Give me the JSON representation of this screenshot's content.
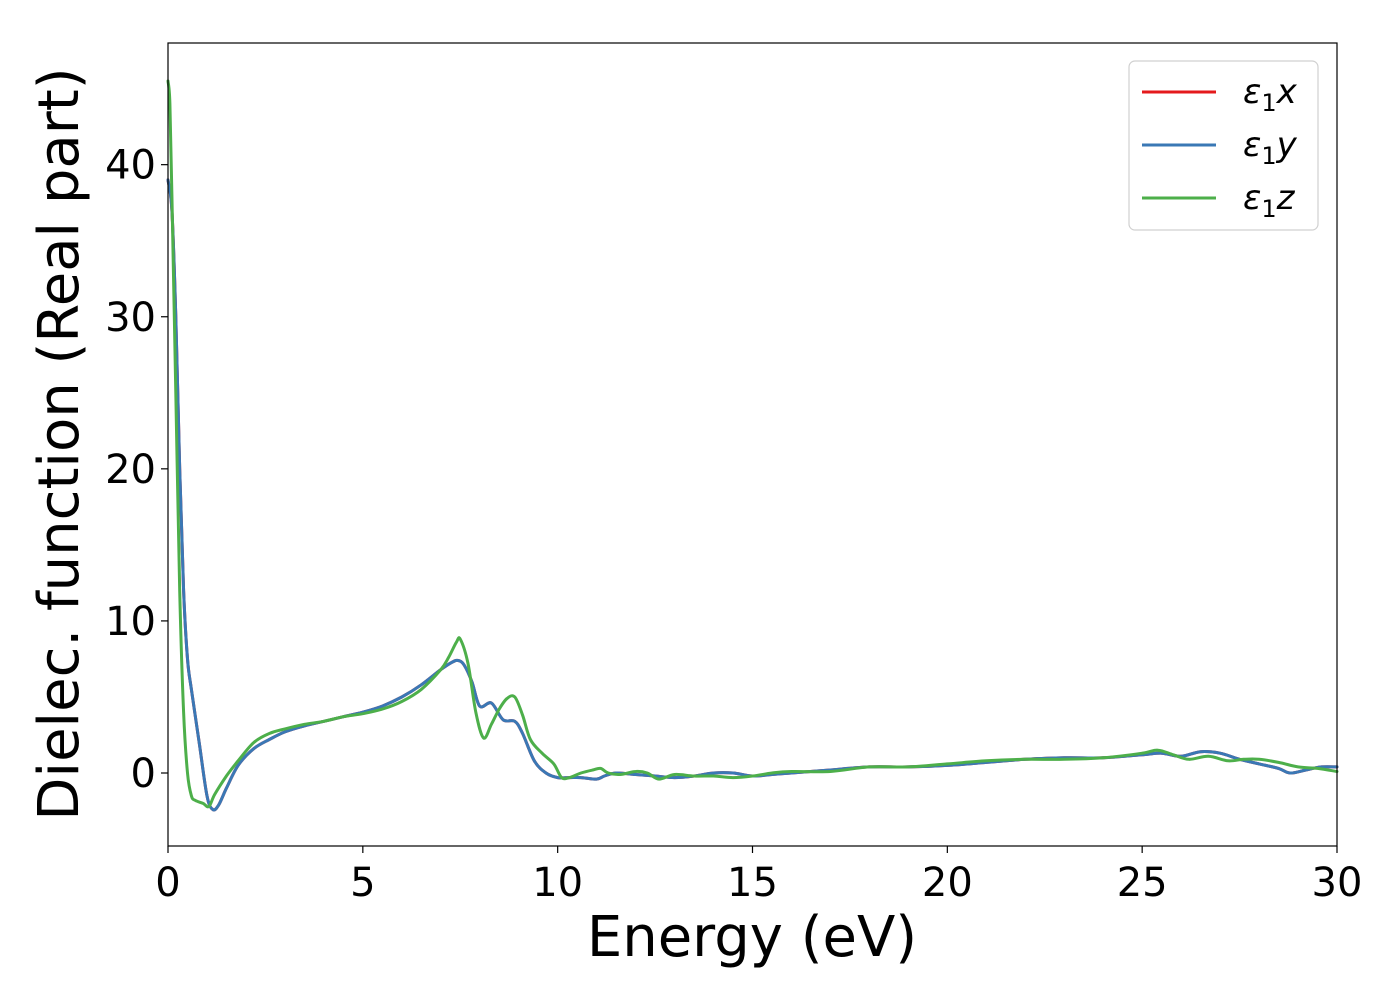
{
  "chart_data": {
    "type": "line",
    "title": "",
    "xlabel": "Energy (eV)",
    "ylabel": "Dielec. function (Real part)",
    "xlim": [
      0,
      30
    ],
    "ylim": [
      -4.8,
      48
    ],
    "xticks": [
      0,
      5,
      10,
      15,
      20,
      25,
      30
    ],
    "yticks": [
      0,
      10,
      20,
      30,
      40
    ],
    "grid": false,
    "legend_position": "top-right",
    "series": [
      {
        "name": "ε1x",
        "legend_main": "ε",
        "legend_sub": "1",
        "legend_var": "x",
        "color": "#e41a1c",
        "x": [
          0,
          0.1,
          0.2,
          0.3,
          0.4,
          0.5,
          0.6,
          0.8,
          1.0,
          1.15,
          1.3,
          1.5,
          1.8,
          2.2,
          2.6,
          3.0,
          3.5,
          4.0,
          4.5,
          5.0,
          5.5,
          6.0,
          6.5,
          7.0,
          7.3,
          7.45,
          7.6,
          7.8,
          8.0,
          8.3,
          8.6,
          8.9,
          9.1,
          9.4,
          9.7,
          10.0,
          10.3,
          10.6,
          11.0,
          11.2,
          11.5,
          12.0,
          12.5,
          13.0,
          13.5,
          14.0,
          14.5,
          15.0,
          15.5,
          16.0,
          17.0,
          18.0,
          19.0,
          20.0,
          21.0,
          22.0,
          23.0,
          24.0,
          25.0,
          25.5,
          26.0,
          26.5,
          27.0,
          27.5,
          28.0,
          28.5,
          28.8,
          29.2,
          29.6,
          30.0
        ],
        "y": [
          39.0,
          37.0,
          30.0,
          20.0,
          12.0,
          7.5,
          5.5,
          2.0,
          -1.5,
          -2.4,
          -2.1,
          -1.0,
          0.5,
          1.6,
          2.2,
          2.7,
          3.1,
          3.4,
          3.7,
          4.0,
          4.4,
          5.0,
          5.8,
          6.8,
          7.3,
          7.4,
          7.1,
          6.0,
          4.4,
          4.6,
          3.5,
          3.4,
          2.6,
          0.8,
          0.0,
          -0.3,
          -0.3,
          -0.3,
          -0.4,
          -0.2,
          0.0,
          -0.1,
          -0.2,
          -0.3,
          -0.2,
          0.0,
          0.0,
          -0.2,
          -0.1,
          0.0,
          0.2,
          0.4,
          0.4,
          0.5,
          0.7,
          0.9,
          1.0,
          1.0,
          1.2,
          1.3,
          1.1,
          1.4,
          1.3,
          0.9,
          0.6,
          0.3,
          0.0,
          0.2,
          0.4,
          0.4
        ]
      },
      {
        "name": "ε1y",
        "legend_main": "ε",
        "legend_sub": "1",
        "legend_var": "y",
        "color": "#3a78b5",
        "x": [
          0,
          0.1,
          0.2,
          0.3,
          0.4,
          0.5,
          0.6,
          0.8,
          1.0,
          1.15,
          1.3,
          1.5,
          1.8,
          2.2,
          2.6,
          3.0,
          3.5,
          4.0,
          4.5,
          5.0,
          5.5,
          6.0,
          6.5,
          7.0,
          7.3,
          7.45,
          7.6,
          7.8,
          8.0,
          8.3,
          8.6,
          8.9,
          9.1,
          9.4,
          9.7,
          10.0,
          10.3,
          10.6,
          11.0,
          11.2,
          11.5,
          12.0,
          12.5,
          13.0,
          13.5,
          14.0,
          14.5,
          15.0,
          15.5,
          16.0,
          17.0,
          18.0,
          19.0,
          20.0,
          21.0,
          22.0,
          23.0,
          24.0,
          25.0,
          25.5,
          26.0,
          26.5,
          27.0,
          27.5,
          28.0,
          28.5,
          28.8,
          29.2,
          29.6,
          30.0
        ],
        "y": [
          39.0,
          37.0,
          30.0,
          20.0,
          12.0,
          7.5,
          5.5,
          2.0,
          -1.5,
          -2.4,
          -2.1,
          -1.0,
          0.5,
          1.6,
          2.2,
          2.7,
          3.1,
          3.4,
          3.7,
          4.0,
          4.4,
          5.0,
          5.8,
          6.8,
          7.3,
          7.4,
          7.1,
          6.0,
          4.4,
          4.6,
          3.5,
          3.4,
          2.6,
          0.8,
          0.0,
          -0.3,
          -0.3,
          -0.3,
          -0.4,
          -0.2,
          0.0,
          -0.1,
          -0.2,
          -0.3,
          -0.2,
          0.0,
          0.0,
          -0.2,
          -0.1,
          0.0,
          0.2,
          0.4,
          0.4,
          0.5,
          0.7,
          0.9,
          1.0,
          1.0,
          1.2,
          1.3,
          1.1,
          1.4,
          1.3,
          0.9,
          0.6,
          0.3,
          0.0,
          0.2,
          0.4,
          0.4
        ]
      },
      {
        "name": "ε1z",
        "legend_main": "ε",
        "legend_sub": "1",
        "legend_var": "z",
        "color": "#4daf4a",
        "x": [
          0,
          0.05,
          0.1,
          0.2,
          0.3,
          0.4,
          0.5,
          0.6,
          0.7,
          0.9,
          1.05,
          1.2,
          1.5,
          1.8,
          2.2,
          2.6,
          3.0,
          3.5,
          4.0,
          4.5,
          5.0,
          5.5,
          6.0,
          6.5,
          7.0,
          7.2,
          7.4,
          7.5,
          7.7,
          7.9,
          8.1,
          8.3,
          8.5,
          8.7,
          8.9,
          9.1,
          9.3,
          9.6,
          9.9,
          10.1,
          10.3,
          10.6,
          10.9,
          11.1,
          11.3,
          11.6,
          12.0,
          12.3,
          12.6,
          13.0,
          13.5,
          14.0,
          14.5,
          15.0,
          15.5,
          16.0,
          17.0,
          18.0,
          19.0,
          20.0,
          21.0,
          22.0,
          23.0,
          24.0,
          25.0,
          25.4,
          25.8,
          26.2,
          26.7,
          27.2,
          27.6,
          28.0,
          28.5,
          29.0,
          29.5,
          30.0
        ],
        "y": [
          45.5,
          44.0,
          38.0,
          25.0,
          12.0,
          4.0,
          0.0,
          -1.5,
          -1.8,
          -2.0,
          -2.2,
          -1.4,
          -0.2,
          0.8,
          2.0,
          2.6,
          2.9,
          3.2,
          3.4,
          3.7,
          3.9,
          4.2,
          4.7,
          5.5,
          6.8,
          7.6,
          8.6,
          8.8,
          7.2,
          4.0,
          2.3,
          3.2,
          4.2,
          4.9,
          5.0,
          3.8,
          2.2,
          1.3,
          0.6,
          -0.3,
          -0.3,
          0.0,
          0.2,
          0.3,
          0.0,
          -0.1,
          0.1,
          0.0,
          -0.4,
          -0.1,
          -0.2,
          -0.2,
          -0.3,
          -0.2,
          0.0,
          0.1,
          0.1,
          0.4,
          0.4,
          0.6,
          0.8,
          0.9,
          0.9,
          1.0,
          1.3,
          1.5,
          1.2,
          0.9,
          1.1,
          0.8,
          0.9,
          0.9,
          0.7,
          0.4,
          0.3,
          0.1
        ]
      }
    ]
  }
}
